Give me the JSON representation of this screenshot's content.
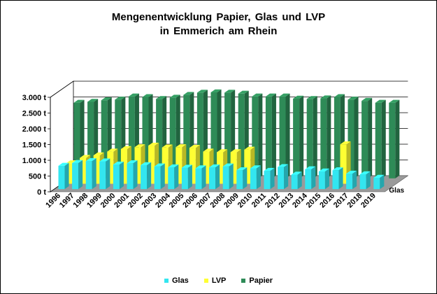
{
  "chart_data": {
    "type": "bar",
    "title_line1": "Mengenentwicklung  Papier, Glas und LVP",
    "title_line2": "in Emmerich  am Rhein",
    "categories": [
      "1996",
      "1997",
      "1998",
      "1999",
      "2000",
      "2001",
      "2002",
      "2003",
      "2004",
      "2005",
      "2006",
      "2007",
      "2008",
      "2009",
      "2010",
      "2011",
      "2012",
      "2013",
      "2014",
      "2015",
      "2016",
      "2017",
      "2018",
      "2019"
    ],
    "y_ticks": [
      "0 t",
      "500 t",
      "1.000 t",
      "1.500 t",
      "2.000 t",
      "2.500 t",
      "3.000 t"
    ],
    "ylim": [
      0,
      3000
    ],
    "grid": true,
    "legend_position": "bottom",
    "depth_label": "Glas",
    "series": [
      {
        "name": "Glas",
        "color": "#33e6f0",
        "values": [
          740,
          830,
          890,
          880,
          780,
          820,
          760,
          720,
          690,
          680,
          660,
          690,
          720,
          600,
          660,
          580,
          700,
          460,
          630,
          560,
          600,
          490,
          470,
          360
        ]
      },
      {
        "name": "LVP",
        "color": "#ffff33",
        "values": [
          650,
          820,
          900,
          1020,
          1100,
          1160,
          1210,
          1150,
          1160,
          1140,
          1020,
          1000,
          1000,
          1080,
          0,
          0,
          0,
          0,
          0,
          0,
          1250,
          0,
          0,
          0
        ]
      },
      {
        "name": "Papier",
        "color": "#2e8b57",
        "values": [
          2400,
          2430,
          2480,
          2500,
          2600,
          2580,
          2520,
          2560,
          2650,
          2720,
          2730,
          2720,
          2690,
          2600,
          2600,
          2600,
          2530,
          2520,
          2540,
          2580,
          2500,
          2460,
          2400,
          2400
        ]
      }
    ]
  }
}
